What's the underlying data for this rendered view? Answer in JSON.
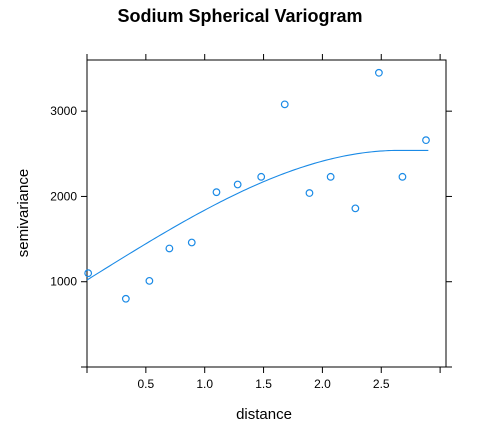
{
  "chart_data": {
    "type": "scatter",
    "title": "Sodium Spherical Variogram",
    "xlabel": "distance",
    "ylabel": "semivariance",
    "xlim": [
      -0.0,
      3.05
    ],
    "ylim": [
      0,
      3600
    ],
    "x_ticks": [
      0.5,
      1.0,
      1.5,
      2.0,
      2.5
    ],
    "x_tick_labels": [
      "0.5",
      "1.0",
      "1.5",
      "2.0",
      "2.5"
    ],
    "y_ticks": [
      1000,
      2000,
      3000
    ],
    "y_tick_labels": [
      "1000",
      "2000",
      "3000"
    ],
    "grid": false,
    "color": "#1a8ae6",
    "points": [
      {
        "x": 0.01,
        "y": 1100
      },
      {
        "x": 0.33,
        "y": 800
      },
      {
        "x": 0.53,
        "y": 1010
      },
      {
        "x": 0.7,
        "y": 1390
      },
      {
        "x": 0.89,
        "y": 1460
      },
      {
        "x": 1.1,
        "y": 2050
      },
      {
        "x": 1.28,
        "y": 2140
      },
      {
        "x": 1.48,
        "y": 2230
      },
      {
        "x": 1.68,
        "y": 3080
      },
      {
        "x": 1.89,
        "y": 2040
      },
      {
        "x": 2.07,
        "y": 2230
      },
      {
        "x": 2.28,
        "y": 1860
      },
      {
        "x": 2.48,
        "y": 3450
      },
      {
        "x": 2.68,
        "y": 2230
      },
      {
        "x": 2.88,
        "y": 2660
      }
    ],
    "fit": {
      "model": "spherical",
      "nugget": 1020,
      "sill": 2540,
      "range": 2.65,
      "x_max": 2.9
    }
  }
}
